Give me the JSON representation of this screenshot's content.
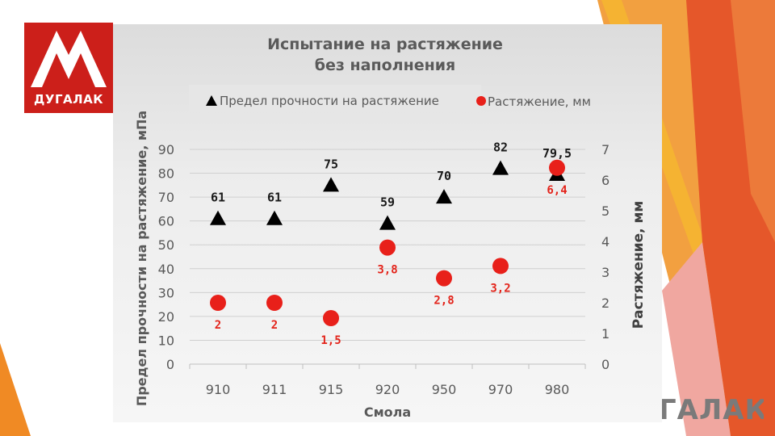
{
  "logo": {
    "word": "ДУГАЛАК"
  },
  "logo_bottom": {
    "word": "ГАЛАК"
  },
  "colors": {
    "tensile_marker": "#000000",
    "elongation_marker": "#e8201a",
    "elongation_label": "#e3231a",
    "logo_red": "#cc1f1a",
    "accent_orange": "#f08a24",
    "accent_dark_orange": "#e5572a",
    "accent_yellow": "#f5b332"
  },
  "chart_data": {
    "type": "scatter",
    "title": "Испытание на растяжение без наполнения",
    "title_lines": [
      "Испытание на растяжение",
      "без наполнения"
    ],
    "xlabel": "Смола",
    "ylabel": "Предел прочности на растяжение, мПа",
    "ylabel_right": "Растяжение, мм",
    "categories": [
      "910",
      "911",
      "915",
      "920",
      "950",
      "970",
      "980"
    ],
    "ylim": [
      0,
      90
    ],
    "y_ticks": [
      "0",
      "10",
      "20",
      "30",
      "40",
      "50",
      "60",
      "70",
      "80",
      "90"
    ],
    "ylim_right": [
      0,
      7
    ],
    "y_ticks_right": [
      "0",
      "1",
      "2",
      "3",
      "4",
      "5",
      "6",
      "7"
    ],
    "grid": true,
    "legend_position": "top",
    "series": [
      {
        "name": "Предел прочности на растяжение",
        "axis": "left",
        "marker": "triangle",
        "values": [
          61,
          61,
          75,
          59,
          70,
          82,
          79.5
        ],
        "labels": [
          "61",
          "61",
          "75",
          "59",
          "70",
          "82",
          "79,5"
        ]
      },
      {
        "name": "Растяжение, мм",
        "axis": "right",
        "marker": "circle",
        "values": [
          2,
          2,
          1.5,
          3.8,
          2.8,
          3.2,
          6.4
        ],
        "labels": [
          "2",
          "2",
          "1,5",
          "3,8",
          "2,8",
          "3,2",
          "6,4"
        ]
      }
    ]
  }
}
